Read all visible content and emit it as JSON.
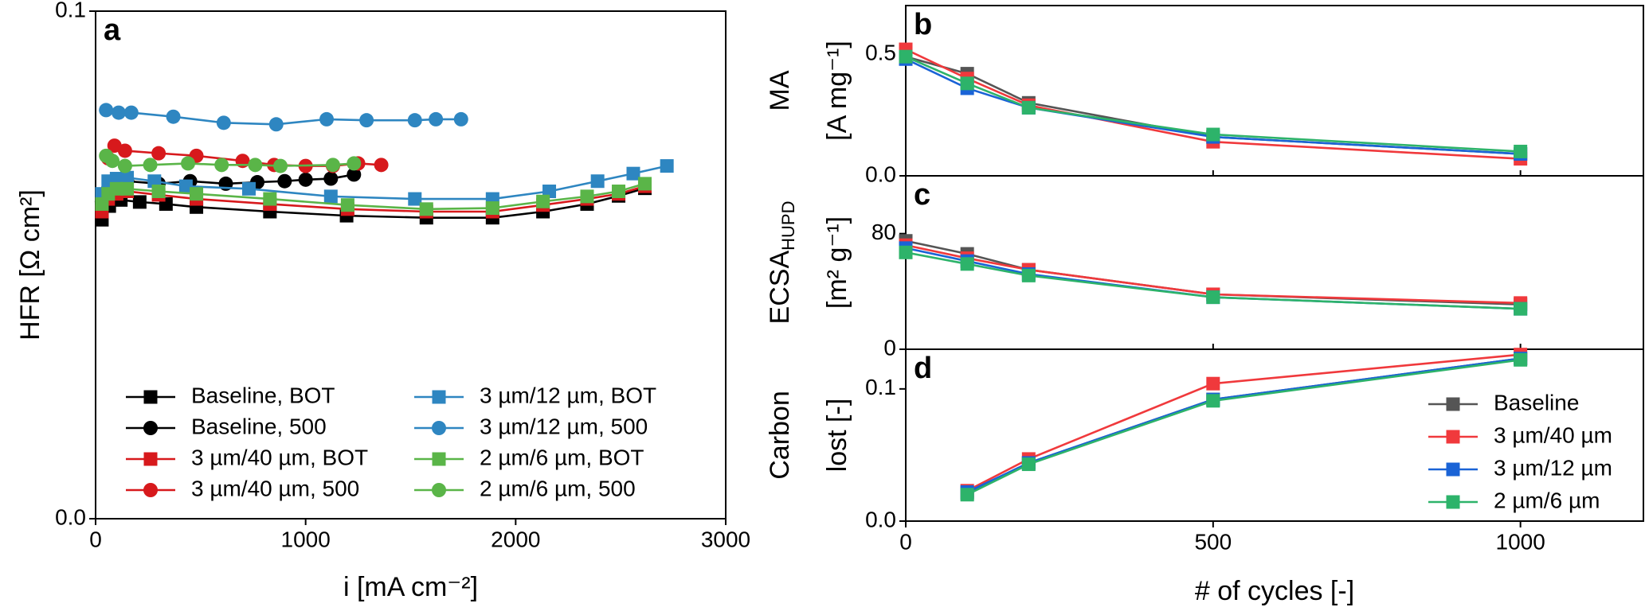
{
  "chart_data": [
    {
      "type": "line",
      "panel_label": "a",
      "x_label": "i [mA cm⁻²]",
      "y_label": [
        "HFR [Ω cm²]"
      ],
      "xlim": [
        0,
        3000
      ],
      "xticks": [
        0,
        1000,
        2000,
        3000
      ],
      "ylim": [
        0,
        0.1
      ],
      "yticks": [
        {
          "value": 0,
          "label": "0.0"
        },
        0.1
      ],
      "legend": "lower left",
      "legend_columns": 2,
      "series": [
        {
          "name": "Baseline, BOT",
          "color": "#000000",
          "marker": "square",
          "x": [
            30,
            65,
            120,
            210,
            335,
            480,
            830,
            1195,
            1575,
            1890,
            2130,
            2340,
            2490,
            2615
          ],
          "values": [
            0.0589,
            0.0616,
            0.0628,
            0.0624,
            0.062,
            0.0614,
            0.0605,
            0.0597,
            0.0593,
            0.0593,
            0.0605,
            0.062,
            0.0636,
            0.0651
          ]
        },
        {
          "name": "Baseline, 500",
          "color": "#000000",
          "marker": "circle",
          "x": [
            30,
            60,
            100,
            150,
            300,
            450,
            620,
            770,
            900,
            1000,
            1120,
            1230
          ],
          "values": [
            0.0625,
            0.065,
            0.0665,
            0.0665,
            0.066,
            0.0665,
            0.066,
            0.0663,
            0.0665,
            0.0668,
            0.067,
            0.0678
          ]
        },
        {
          "name": "3 µm/40 µm, BOT",
          "color": "#d7191c",
          "marker": "square",
          "x": [
            30,
            60,
            100,
            150,
            300,
            480,
            830,
            1200,
            1575,
            1890,
            2130,
            2340,
            2490,
            2615
          ],
          "values": [
            0.0605,
            0.063,
            0.064,
            0.0645,
            0.0638,
            0.063,
            0.062,
            0.061,
            0.0605,
            0.0605,
            0.0618,
            0.063,
            0.064,
            0.0655
          ]
        },
        {
          "name": "3 µm/40 µm, 500",
          "color": "#d7191c",
          "marker": "circle",
          "x": [
            60,
            90,
            140,
            300,
            480,
            700,
            850,
            1000,
            1130,
            1250,
            1360
          ],
          "values": [
            0.071,
            0.0735,
            0.0725,
            0.072,
            0.0715,
            0.0705,
            0.0697,
            0.0695,
            0.0695,
            0.07,
            0.0697
          ]
        },
        {
          "name": "3 µm/12 µm, BOT",
          "color": "#2e86c1",
          "marker": "square",
          "x": [
            30,
            60,
            100,
            150,
            280,
            430,
            730,
            1120,
            1520,
            1890,
            2160,
            2390,
            2560,
            2720
          ],
          "values": [
            0.064,
            0.0665,
            0.067,
            0.0672,
            0.0665,
            0.0655,
            0.065,
            0.0635,
            0.063,
            0.063,
            0.0645,
            0.0665,
            0.068,
            0.0695
          ]
        },
        {
          "name": "3 µm/12 µm, 500",
          "color": "#2e86c1",
          "marker": "circle",
          "x": [
            50,
            110,
            170,
            370,
            610,
            860,
            1100,
            1290,
            1520,
            1620,
            1740
          ],
          "values": [
            0.0805,
            0.08,
            0.08,
            0.0792,
            0.078,
            0.0777,
            0.0787,
            0.0785,
            0.0785,
            0.0787,
            0.0787
          ]
        },
        {
          "name": "2 µm/6 µm, BOT",
          "color": "#5ab548",
          "marker": "square",
          "x": [
            30,
            60,
            100,
            150,
            300,
            480,
            830,
            1200,
            1575,
            1890,
            2130,
            2340,
            2490,
            2615
          ],
          "values": [
            0.062,
            0.064,
            0.065,
            0.065,
            0.0645,
            0.064,
            0.063,
            0.0618,
            0.061,
            0.0612,
            0.0625,
            0.0635,
            0.0645,
            0.066
          ]
        },
        {
          "name": "2 µm/6 µm, 500",
          "color": "#5ab548",
          "marker": "circle",
          "x": [
            50,
            80,
            140,
            260,
            440,
            600,
            760,
            880,
            1130,
            1230
          ],
          "values": [
            0.0715,
            0.0705,
            0.0695,
            0.0697,
            0.07,
            0.0697,
            0.0697,
            0.0695,
            0.0697,
            0.07
          ]
        }
      ]
    },
    {
      "type": "line",
      "panel_label": "b",
      "y_label": [
        "MA",
        "[A mg⁻¹]"
      ],
      "x": [
        0,
        100,
        200,
        500,
        1000
      ],
      "xlim": [
        0,
        1200
      ],
      "xticks": [
        0,
        500,
        1000
      ],
      "ylim": [
        0,
        0.7
      ],
      "yticks": [
        {
          "value": 0,
          "label": "0.0"
        },
        0.5
      ],
      "series": [
        {
          "color": "#555555",
          "values": [
            0.49,
            0.42,
            0.3,
            0.16,
            0.09
          ]
        },
        {
          "color": "#f0393c",
          "values": [
            0.52,
            0.4,
            0.29,
            0.14,
            0.07
          ]
        },
        {
          "color": "#1a63d6",
          "values": [
            0.48,
            0.36,
            0.28,
            0.16,
            0.09
          ]
        },
        {
          "color": "#2db36a",
          "values": [
            0.49,
            0.38,
            0.28,
            0.17,
            0.1
          ]
        }
      ]
    },
    {
      "type": "line",
      "panel_label": "c",
      "y_label": [
        "ECSA",
        "[m² g⁻¹]"
      ],
      "y_label_sub": "HUPD",
      "x": [
        0,
        100,
        200,
        500,
        1000
      ],
      "xlim": [
        0,
        1200
      ],
      "xticks": [
        0,
        500,
        1000
      ],
      "ylim": [
        0,
        120
      ],
      "yticks": [
        0,
        80
      ],
      "series": [
        {
          "color": "#555555",
          "values": [
            75,
            66,
            55,
            38,
            31
          ]
        },
        {
          "color": "#f0393c",
          "values": [
            72,
            63,
            55,
            38,
            32
          ]
        },
        {
          "color": "#1a63d6",
          "values": [
            70,
            61,
            52,
            36,
            28
          ]
        },
        {
          "color": "#2db36a",
          "values": [
            67,
            59,
            51,
            36,
            28
          ]
        }
      ]
    },
    {
      "type": "line",
      "panel_label": "d",
      "y_label": [
        "Carbon",
        "lost [-]"
      ],
      "x_label": "# of cycles [-]",
      "x": [
        100,
        200,
        500,
        1000
      ],
      "xlim": [
        0,
        1200
      ],
      "xticks": [
        0,
        500,
        1000
      ],
      "ylim": [
        0,
        0.13
      ],
      "yticks": [
        {
          "value": 0,
          "label": "0.0"
        },
        0.1
      ],
      "legend": "lower right",
      "legend_columns": 1,
      "series": [
        {
          "name": "Baseline",
          "color": "#555555",
          "values": [
            0.021,
            0.044,
            0.092,
            0.123
          ]
        },
        {
          "name": "3 µm/40 µm",
          "color": "#f0393c",
          "values": [
            0.023,
            0.047,
            0.104,
            0.126
          ]
        },
        {
          "name": "3 µm/12 µm",
          "color": "#1a63d6",
          "values": [
            0.022,
            0.044,
            0.092,
            0.123
          ]
        },
        {
          "name": "2 µm/6 µm",
          "color": "#2db36a",
          "values": [
            0.02,
            0.043,
            0.091,
            0.122
          ]
        }
      ]
    }
  ]
}
